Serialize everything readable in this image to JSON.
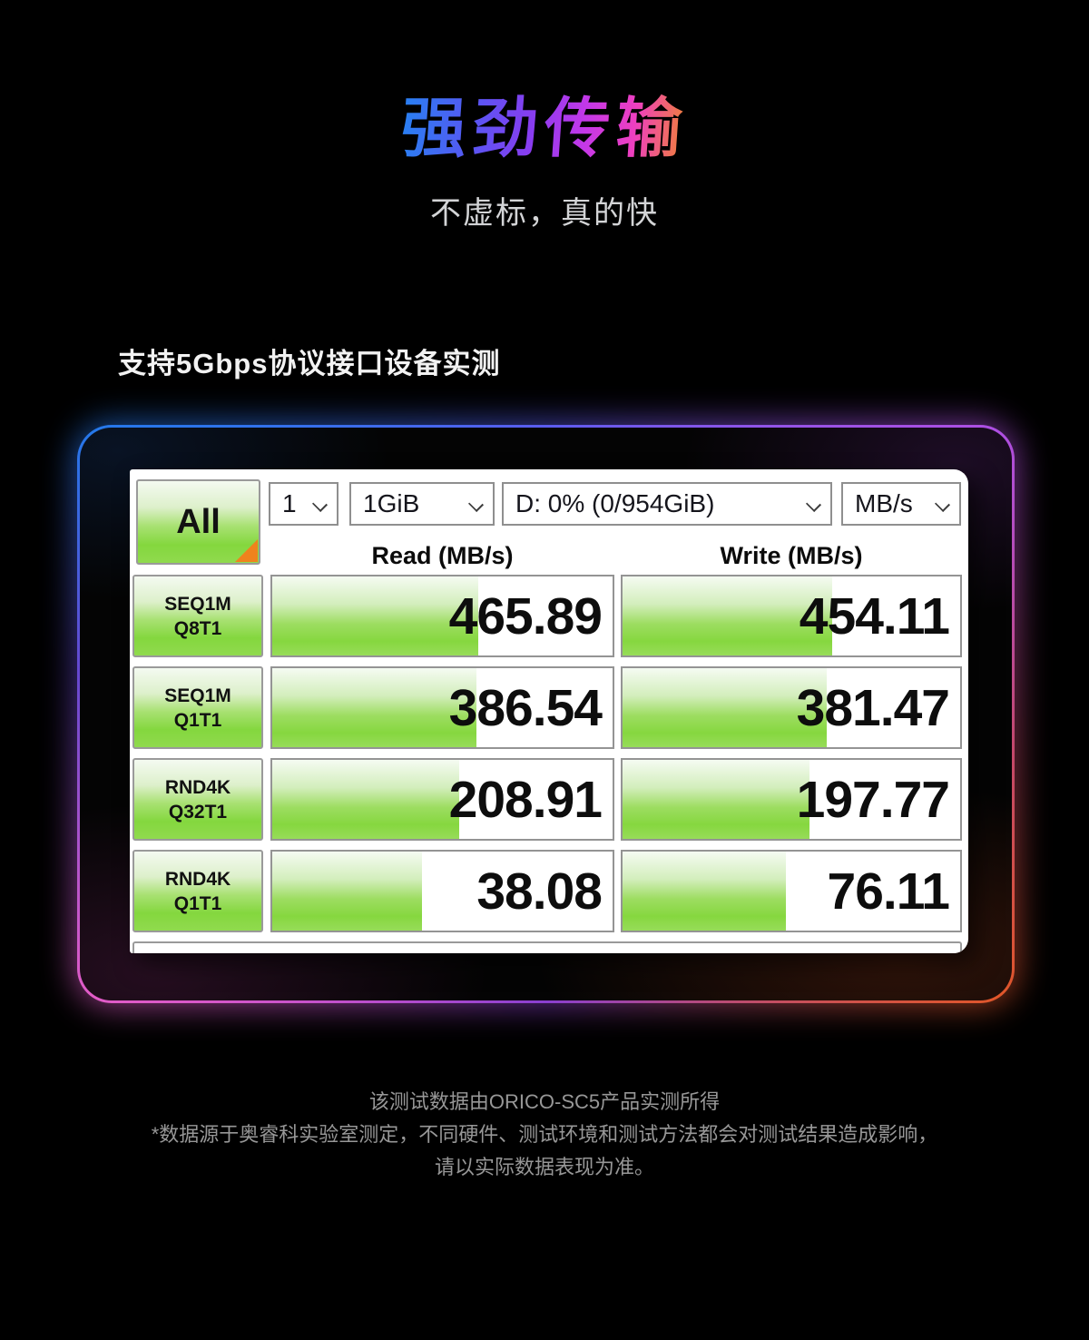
{
  "page": {
    "title": "强劲传输",
    "subtitle": "不虚标，真的快",
    "section_heading": "支持5Gbps协议接口设备实测",
    "footer_lines": [
      "该测试数据由ORICO-SC5产品实测所得",
      "*数据源于奥睿科实验室测定，不同硬件、测试环境和测试方法都会对测试结果造成影响，",
      "请以实际数据表现为准。"
    ]
  },
  "colors": {
    "title_gradient": [
      "#2b7df2",
      "#8a3cf0",
      "#ee3fc0",
      "#f08038"
    ],
    "frame_glow": [
      "#2578ea",
      "#ae4fe2",
      "#e35cc8",
      "#e0562a"
    ],
    "bar_green": "#86d73f",
    "triangle_orange": "#ef831d"
  },
  "benchmark": {
    "all_button_label": "All",
    "dropdowns": [
      {
        "value": "1"
      },
      {
        "value": "1GiB"
      },
      {
        "value": "D: 0% (0/954GiB)"
      },
      {
        "value": "MB/s"
      }
    ],
    "read_header": "Read (MB/s)",
    "write_header": "Write (MB/s)",
    "rows": [
      {
        "label_line1": "SEQ1M",
        "label_line2": "Q8T1",
        "read": "465.89",
        "write": "454.11",
        "read_fill_style": "width:60.5%",
        "write_fill_style": "width:62%"
      },
      {
        "label_line1": "SEQ1M",
        "label_line2": "Q1T1",
        "read": "386.54",
        "write": "381.47",
        "read_fill_style": "width:60%",
        "write_fill_style": "width:60.5%"
      },
      {
        "label_line1": "RND4K",
        "label_line2": "Q32T1",
        "read": "208.91",
        "write": "197.77",
        "read_fill_style": "width:55%",
        "write_fill_style": "width:55.5%"
      },
      {
        "label_line1": "RND4K",
        "label_line2": "Q1T1",
        "read": "38.08",
        "write": "76.11",
        "read_fill_style": "width:44%",
        "write_fill_style": "width:48.5%"
      }
    ]
  }
}
